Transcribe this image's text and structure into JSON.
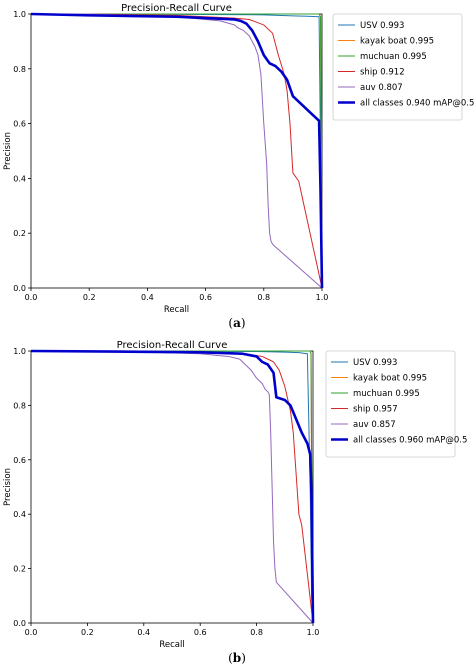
{
  "chart_data": [
    {
      "type": "line",
      "caption_pre": "(",
      "caption_letter": "a",
      "caption_post": ")",
      "title": "Precision-Recall Curve",
      "xlabel": "Recall",
      "ylabel": "Precision",
      "xlim": [
        0,
        1
      ],
      "ylim": [
        0,
        1
      ],
      "xticks": [
        "0.0",
        "0.2",
        "0.4",
        "0.6",
        "0.8",
        "1.0"
      ],
      "yticks": [
        "0.0",
        "0.2",
        "0.4",
        "0.6",
        "0.8",
        "1.0"
      ],
      "legend_position": "right",
      "series": [
        {
          "name": "USV 0.993",
          "color": "#1f77b4",
          "width": 1,
          "x": [
            0,
            0.2,
            0.8,
            0.85,
            0.9,
            0.95,
            0.99,
            0.995,
            1.0
          ],
          "y": [
            1,
            1,
            0.997,
            0.995,
            0.993,
            0.992,
            0.99,
            0.5,
            0
          ]
        },
        {
          "name": "kayak boat 0.995",
          "color": "#ff7f0e",
          "width": 1,
          "x": [
            0,
            0.5,
            0.99,
            0.995,
            0.998,
            1.0
          ],
          "y": [
            1,
            1,
            1,
            0.99,
            0.5,
            0
          ]
        },
        {
          "name": "muchuan 0.995",
          "color": "#2ca02c",
          "width": 1,
          "x": [
            0,
            0.5,
            0.99,
            0.995,
            0.996,
            0.997,
            1.0
          ],
          "y": [
            1,
            1,
            1,
            0.99,
            0.7,
            0.6,
            0
          ]
        },
        {
          "name": "ship 0.912",
          "color": "#d62728",
          "width": 1,
          "x": [
            0,
            0.2,
            0.5,
            0.6,
            0.7,
            0.75,
            0.8,
            0.83,
            0.85,
            0.87,
            0.88,
            0.89,
            0.9,
            0.92,
            1.0
          ],
          "y": [
            1,
            1,
            0.995,
            0.99,
            0.985,
            0.98,
            0.96,
            0.93,
            0.85,
            0.78,
            0.72,
            0.6,
            0.42,
            0.39,
            0.0
          ]
        },
        {
          "name": "auv 0.807",
          "color": "#9467bd",
          "width": 1,
          "x": [
            0,
            0.2,
            0.5,
            0.6,
            0.65,
            0.7,
            0.71,
            0.73,
            0.75,
            0.76,
            0.77,
            0.78,
            0.79,
            0.8,
            0.81,
            0.815,
            0.82,
            0.825,
            0.83,
            0.84,
            1.0
          ],
          "y": [
            1,
            1,
            0.99,
            0.98,
            0.975,
            0.96,
            0.95,
            0.94,
            0.92,
            0.9,
            0.88,
            0.85,
            0.78,
            0.6,
            0.45,
            0.3,
            0.2,
            0.17,
            0.16,
            0.15,
            0.0
          ]
        },
        {
          "name": "all classes 0.940 mAP@0.5",
          "color": "#0000cc",
          "width": 2.6,
          "x": [
            0,
            0.2,
            0.5,
            0.7,
            0.72,
            0.74,
            0.76,
            0.78,
            0.8,
            0.82,
            0.84,
            0.86,
            0.88,
            0.9,
            0.93,
            0.96,
            0.99,
            0.995,
            1.0
          ],
          "y": [
            1,
            0.995,
            0.99,
            0.98,
            0.975,
            0.965,
            0.94,
            0.9,
            0.85,
            0.82,
            0.81,
            0.79,
            0.76,
            0.7,
            0.67,
            0.64,
            0.61,
            0.35,
            0.0
          ]
        }
      ]
    },
    {
      "type": "line",
      "caption_pre": "(",
      "caption_letter": "b",
      "caption_post": ")",
      "title": "Precision-Recall Curve",
      "xlabel": "Recall",
      "ylabel": "Precision",
      "xlim": [
        0,
        1
      ],
      "ylim": [
        0,
        1
      ],
      "xticks": [
        "0.0",
        "0.2",
        "0.4",
        "0.6",
        "0.8",
        "1.0"
      ],
      "yticks": [
        "0.0",
        "0.2",
        "0.4",
        "0.6",
        "0.8",
        "1.0"
      ],
      "legend_position": "right",
      "series": [
        {
          "name": "USV 0.993",
          "color": "#1f77b4",
          "width": 1,
          "x": [
            0,
            0.2,
            0.8,
            0.9,
            0.95,
            0.98,
            0.99,
            0.995,
            1.0
          ],
          "y": [
            1,
            1,
            0.998,
            0.996,
            0.994,
            0.99,
            0.5,
            0.1,
            0
          ]
        },
        {
          "name": "kayak boat 0.995",
          "color": "#ff7f0e",
          "width": 1,
          "x": [
            0,
            0.5,
            0.99,
            0.993,
            0.995,
            0.997,
            1.0
          ],
          "y": [
            1,
            1,
            1,
            0.99,
            0.45,
            0.35,
            0
          ]
        },
        {
          "name": "muchuan 0.995",
          "color": "#2ca02c",
          "width": 1,
          "x": [
            0,
            0.5,
            0.99,
            0.993,
            0.995,
            0.996,
            1.0
          ],
          "y": [
            1,
            1,
            1,
            0.99,
            0.62,
            0.55,
            0
          ]
        },
        {
          "name": "ship 0.957",
          "color": "#d62728",
          "width": 1,
          "x": [
            0,
            0.3,
            0.6,
            0.75,
            0.82,
            0.86,
            0.88,
            0.9,
            0.92,
            0.93,
            0.94,
            0.95,
            0.96,
            1.0
          ],
          "y": [
            1,
            1,
            0.995,
            0.99,
            0.98,
            0.96,
            0.93,
            0.87,
            0.78,
            0.7,
            0.55,
            0.4,
            0.36,
            0.0
          ]
        },
        {
          "name": "auv 0.857",
          "color": "#9467bd",
          "width": 1,
          "x": [
            0,
            0.3,
            0.6,
            0.7,
            0.74,
            0.76,
            0.78,
            0.8,
            0.82,
            0.83,
            0.84,
            0.845,
            0.85,
            0.855,
            0.86,
            0.865,
            0.87,
            1.0
          ],
          "y": [
            1,
            1,
            0.99,
            0.98,
            0.97,
            0.95,
            0.93,
            0.9,
            0.88,
            0.86,
            0.85,
            0.84,
            0.7,
            0.5,
            0.3,
            0.2,
            0.15,
            0.0
          ]
        },
        {
          "name": "all classes 0.960 mAP@0.5",
          "color": "#0000cc",
          "width": 2.6,
          "x": [
            0,
            0.3,
            0.6,
            0.75,
            0.8,
            0.82,
            0.84,
            0.86,
            0.87,
            0.9,
            0.92,
            0.94,
            0.96,
            0.98,
            0.99,
            0.995,
            1.0
          ],
          "y": [
            1,
            0.998,
            0.995,
            0.99,
            0.98,
            0.96,
            0.95,
            0.92,
            0.83,
            0.82,
            0.8,
            0.75,
            0.7,
            0.66,
            0.62,
            0.45,
            0.0
          ]
        }
      ]
    }
  ]
}
